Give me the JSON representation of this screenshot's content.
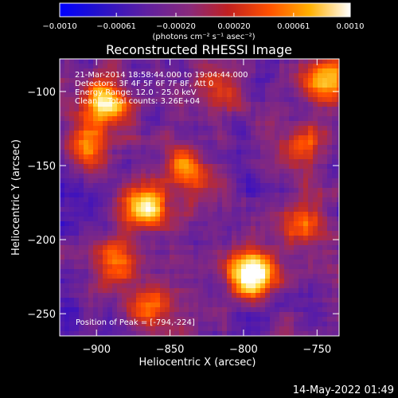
{
  "colorbar": {
    "ticks": [
      "-0.0010",
      "-0.00061",
      "-0.00020",
      "0.00020",
      "0.00061",
      "0.0010"
    ],
    "tick_values": [
      -0.001,
      -0.00061,
      -0.0002,
      0.0002,
      0.00061,
      0.001
    ],
    "range": [
      -0.001,
      0.001
    ],
    "unit_label": "(photons cm⁻² s⁻¹ asec⁻²)"
  },
  "chart_data": {
    "type": "heatmap",
    "title": "Reconstructed RHESSI Image",
    "xlabel": "Heliocentric X (arcsec)",
    "ylabel": "Heliocentric Y (arcsec)",
    "xlim": [
      -925,
      -735
    ],
    "ylim": [
      -265,
      -78
    ],
    "x_ticks": [
      -900,
      -850,
      -800,
      -750
    ],
    "y_ticks": [
      -100,
      -150,
      -200,
      -250
    ],
    "x_tick_labels": [
      "−900",
      "−850",
      "−800",
      "−750"
    ],
    "y_tick_labels": [
      "−100",
      "−150",
      "−200",
      "−250"
    ],
    "colormap": [
      "#0000ff",
      "#3a10c0",
      "#6020a0",
      "#8a2a7a",
      "#c02a2a",
      "#ff4a00",
      "#ffa000",
      "#ffe050",
      "#ffffff"
    ],
    "sources": [
      {
        "x": -794,
        "y": -224,
        "peak": 1.0
      },
      {
        "x": -868,
        "y": -178,
        "peak": 0.85
      },
      {
        "x": -893,
        "y": -108,
        "peak": 0.8
      },
      {
        "x": -905,
        "y": -135,
        "peak": 0.55
      },
      {
        "x": -838,
        "y": -153,
        "peak": 0.55
      },
      {
        "x": -760,
        "y": -135,
        "peak": 0.5
      },
      {
        "x": -743,
        "y": -92,
        "peak": 0.7
      },
      {
        "x": -863,
        "y": -245,
        "peak": 0.5
      },
      {
        "x": -815,
        "y": -100,
        "peak": 0.45
      },
      {
        "x": -885,
        "y": -215,
        "peak": 0.5
      },
      {
        "x": -760,
        "y": -188,
        "peak": 0.45
      }
    ],
    "info_lines": [
      "21-Mar-2014 18:58:44.000 to 19:04:44.000",
      "Detectors: 3F 4F 5F 6F 7F 8F, Att 0",
      "Energy Range: 12.0 - 25.0 keV",
      "Clean    Total counts: 3.26E+04"
    ],
    "peak_label": "Position of Peak = [-794,-224]"
  },
  "footer": {
    "timestamp": "14-May-2022 01:49"
  }
}
